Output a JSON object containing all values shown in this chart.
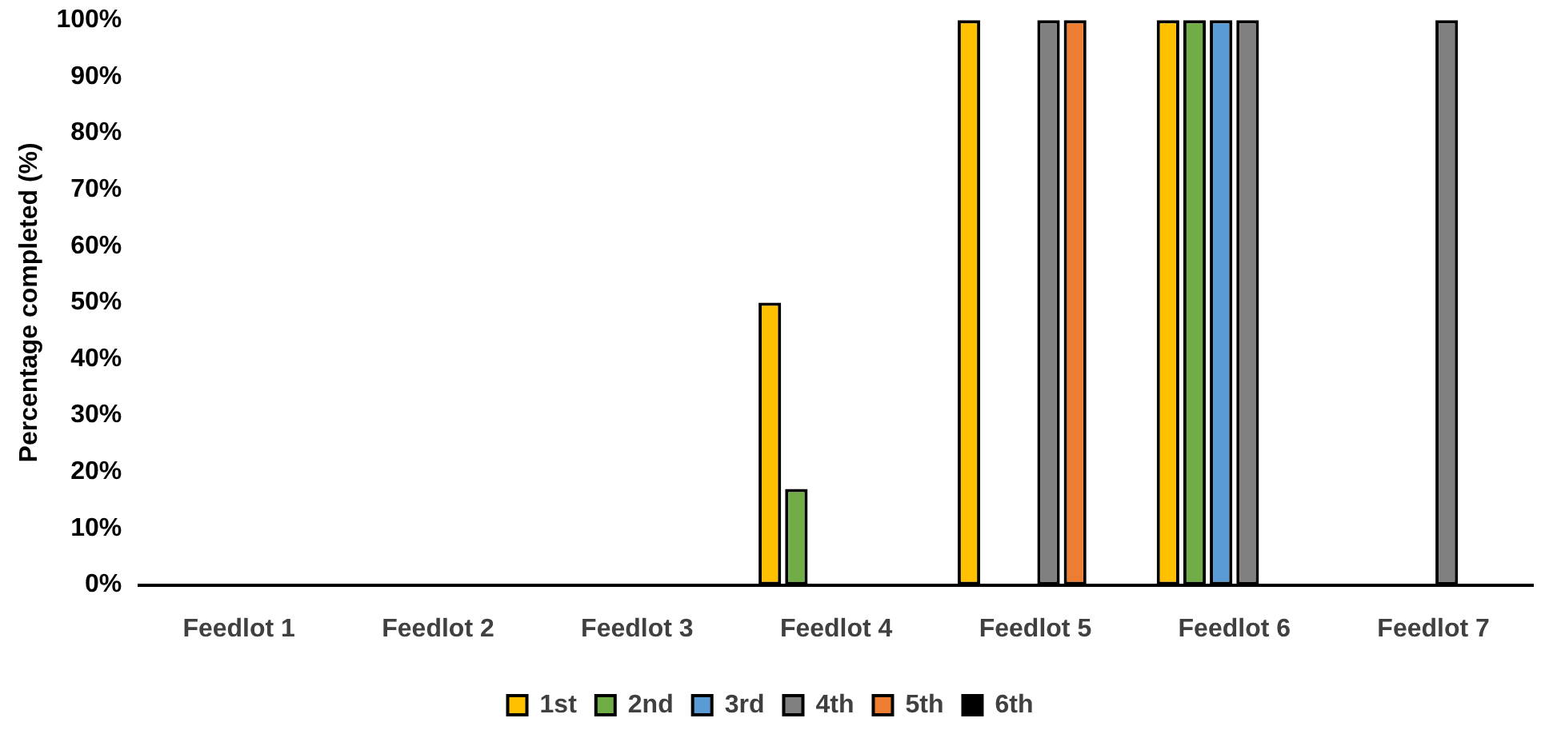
{
  "chart_data": {
    "type": "bar",
    "ylabel": "Percentage completed (%)",
    "categories": [
      "Feedlot 1",
      "Feedlot 2",
      "Feedlot 3",
      "Feedlot 4",
      "Feedlot 5",
      "Feedlot 6",
      "Feedlot 7"
    ],
    "series": [
      {
        "name": "1st",
        "color": "#ffc000",
        "values": [
          0,
          0,
          0,
          50,
          100,
          100,
          0
        ]
      },
      {
        "name": "2nd",
        "color": "#70ad47",
        "values": [
          0,
          0,
          0,
          17,
          0,
          100,
          0
        ]
      },
      {
        "name": "3rd",
        "color": "#5b9bd5",
        "values": [
          0,
          0,
          0,
          0,
          0,
          100,
          0
        ]
      },
      {
        "name": "4th",
        "color": "#808080",
        "values": [
          0,
          0,
          0,
          0,
          100,
          100,
          100
        ]
      },
      {
        "name": "5th",
        "color": "#ed7d31",
        "values": [
          0,
          0,
          0,
          0,
          100,
          0,
          0
        ]
      },
      {
        "name": "6th",
        "color": "#000000",
        "values": [
          0,
          0,
          0,
          0,
          0,
          0,
          0
        ]
      }
    ],
    "ylim": [
      0,
      100
    ],
    "yticks": [
      {
        "value": 0,
        "label": "0%"
      },
      {
        "value": 10,
        "label": "10%"
      },
      {
        "value": 20,
        "label": "20%"
      },
      {
        "value": 30,
        "label": "30%"
      },
      {
        "value": 40,
        "label": "40%"
      },
      {
        "value": 50,
        "label": "50%"
      },
      {
        "value": 60,
        "label": "60%"
      },
      {
        "value": 70,
        "label": "70%"
      },
      {
        "value": 80,
        "label": "80%"
      },
      {
        "value": 90,
        "label": "90%"
      },
      {
        "value": 100,
        "label": "100%"
      }
    ],
    "grid": false,
    "legend": "bottom"
  }
}
